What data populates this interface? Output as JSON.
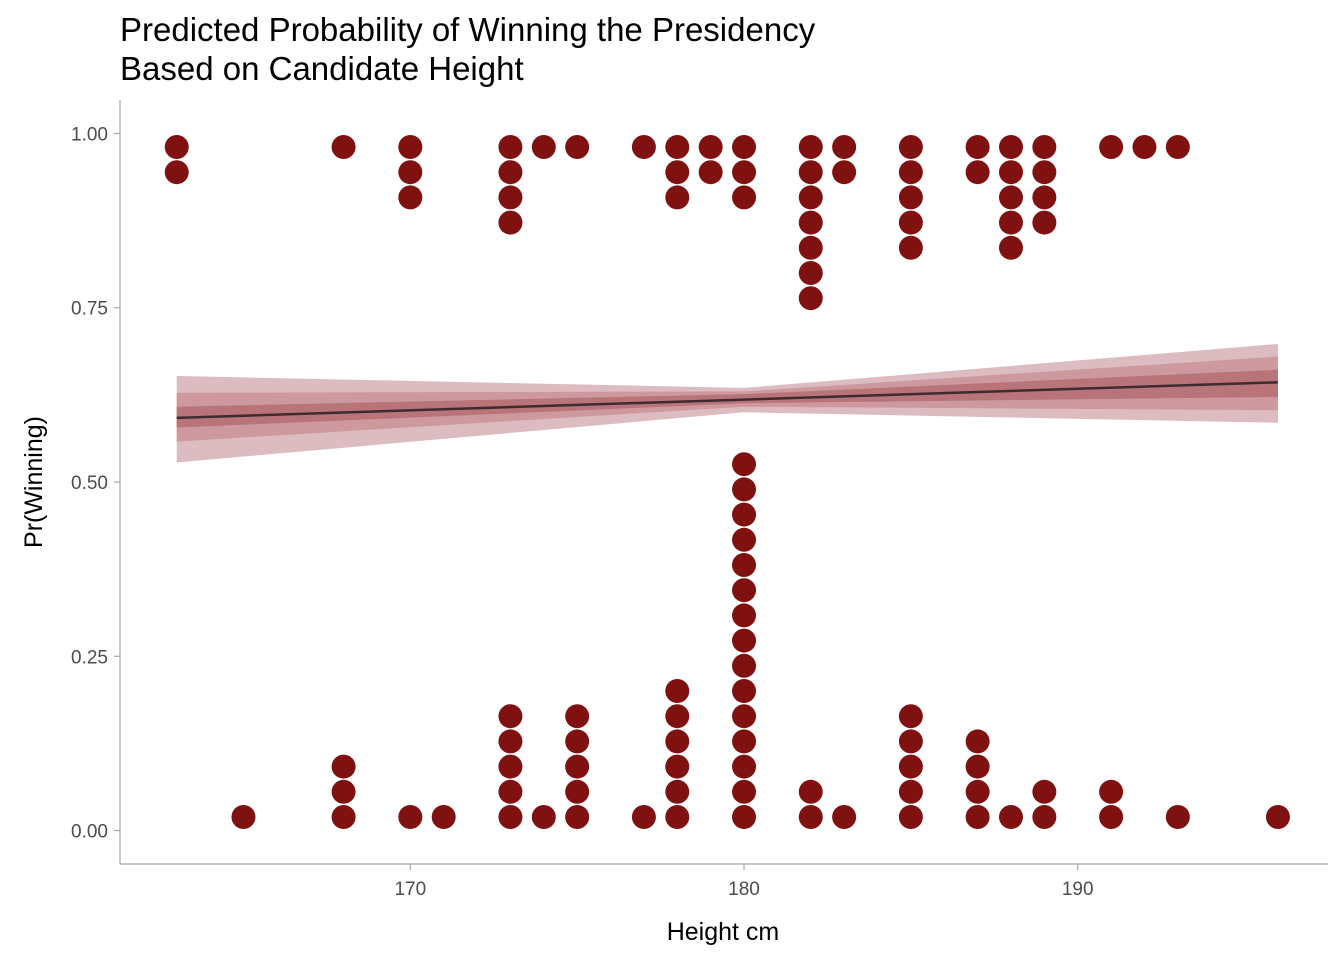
{
  "chart_data": {
    "type": "scatter",
    "title_line1": "Predicted Probability of Winning the Presidency",
    "title_line2": "Based on Candidate Height",
    "xlabel": "Height cm",
    "ylabel": "Pr(Winning)",
    "xlim": [
      161.3,
      197.5
    ],
    "ylim": [
      -0.048,
      1.048
    ],
    "x_ticks": [
      170,
      180,
      190
    ],
    "x_tick_labels": [
      "170",
      "180",
      "190"
    ],
    "y_ticks": [
      0,
      0.25,
      0.5,
      0.75,
      1.0
    ],
    "y_tick_labels": [
      "0.00",
      "0.25",
      "0.50",
      "0.75",
      "1.00"
    ],
    "dots_style": "stacked dotplot; wins stack down from 1, losses stack up from 0",
    "wins": [
      {
        "height": 163,
        "count": 2
      },
      {
        "height": 168,
        "count": 1
      },
      {
        "height": 170,
        "count": 3
      },
      {
        "height": 173,
        "count": 4
      },
      {
        "height": 174,
        "count": 1
      },
      {
        "height": 175,
        "count": 1
      },
      {
        "height": 177,
        "count": 1
      },
      {
        "height": 178,
        "count": 3
      },
      {
        "height": 179,
        "count": 2
      },
      {
        "height": 180,
        "count": 3
      },
      {
        "height": 182,
        "count": 7
      },
      {
        "height": 183,
        "count": 2
      },
      {
        "height": 185,
        "count": 5
      },
      {
        "height": 187,
        "count": 2
      },
      {
        "height": 188,
        "count": 5
      },
      {
        "height": 189,
        "count": 4
      },
      {
        "height": 191,
        "count": 1
      },
      {
        "height": 192,
        "count": 1
      },
      {
        "height": 193,
        "count": 1
      }
    ],
    "losses": [
      {
        "height": 165,
        "count": 1
      },
      {
        "height": 168,
        "count": 3
      },
      {
        "height": 170,
        "count": 1
      },
      {
        "height": 171,
        "count": 1
      },
      {
        "height": 173,
        "count": 5
      },
      {
        "height": 174,
        "count": 1
      },
      {
        "height": 175,
        "count": 5
      },
      {
        "height": 177,
        "count": 1
      },
      {
        "height": 178,
        "count": 6
      },
      {
        "height": 180,
        "count": 15
      },
      {
        "height": 182,
        "count": 2
      },
      {
        "height": 183,
        "count": 1
      },
      {
        "height": 185,
        "count": 5
      },
      {
        "height": 187,
        "count": 4
      },
      {
        "height": 188,
        "count": 1
      },
      {
        "height": 189,
        "count": 2
      },
      {
        "height": 191,
        "count": 2
      },
      {
        "height": 193,
        "count": 1
      },
      {
        "height": 196,
        "count": 1
      }
    ],
    "fit_line": {
      "x": [
        163,
        196
      ],
      "y": [
        0.592,
        0.643
      ]
    },
    "intervals": [
      {
        "level": "outer",
        "x": [
          163,
          180,
          196
        ],
        "lower": [
          0.528,
          0.6,
          0.585
        ],
        "upper": [
          0.652,
          0.635,
          0.698
        ]
      },
      {
        "level": "middle",
        "x": [
          163,
          180,
          196
        ],
        "lower": [
          0.558,
          0.608,
          0.603
        ],
        "upper": [
          0.628,
          0.63,
          0.68
        ]
      },
      {
        "level": "inner",
        "x": [
          163,
          180,
          196
        ],
        "lower": [
          0.578,
          0.613,
          0.622
        ],
        "upper": [
          0.608,
          0.626,
          0.661
        ]
      }
    ],
    "colors": {
      "dots": "#7f1111",
      "line": "#3d2b2f",
      "band_outer": "#dcbcc0",
      "band_middle": "#cd999f",
      "band_inner": "#b87479",
      "axis": "#a6a6a6"
    }
  }
}
